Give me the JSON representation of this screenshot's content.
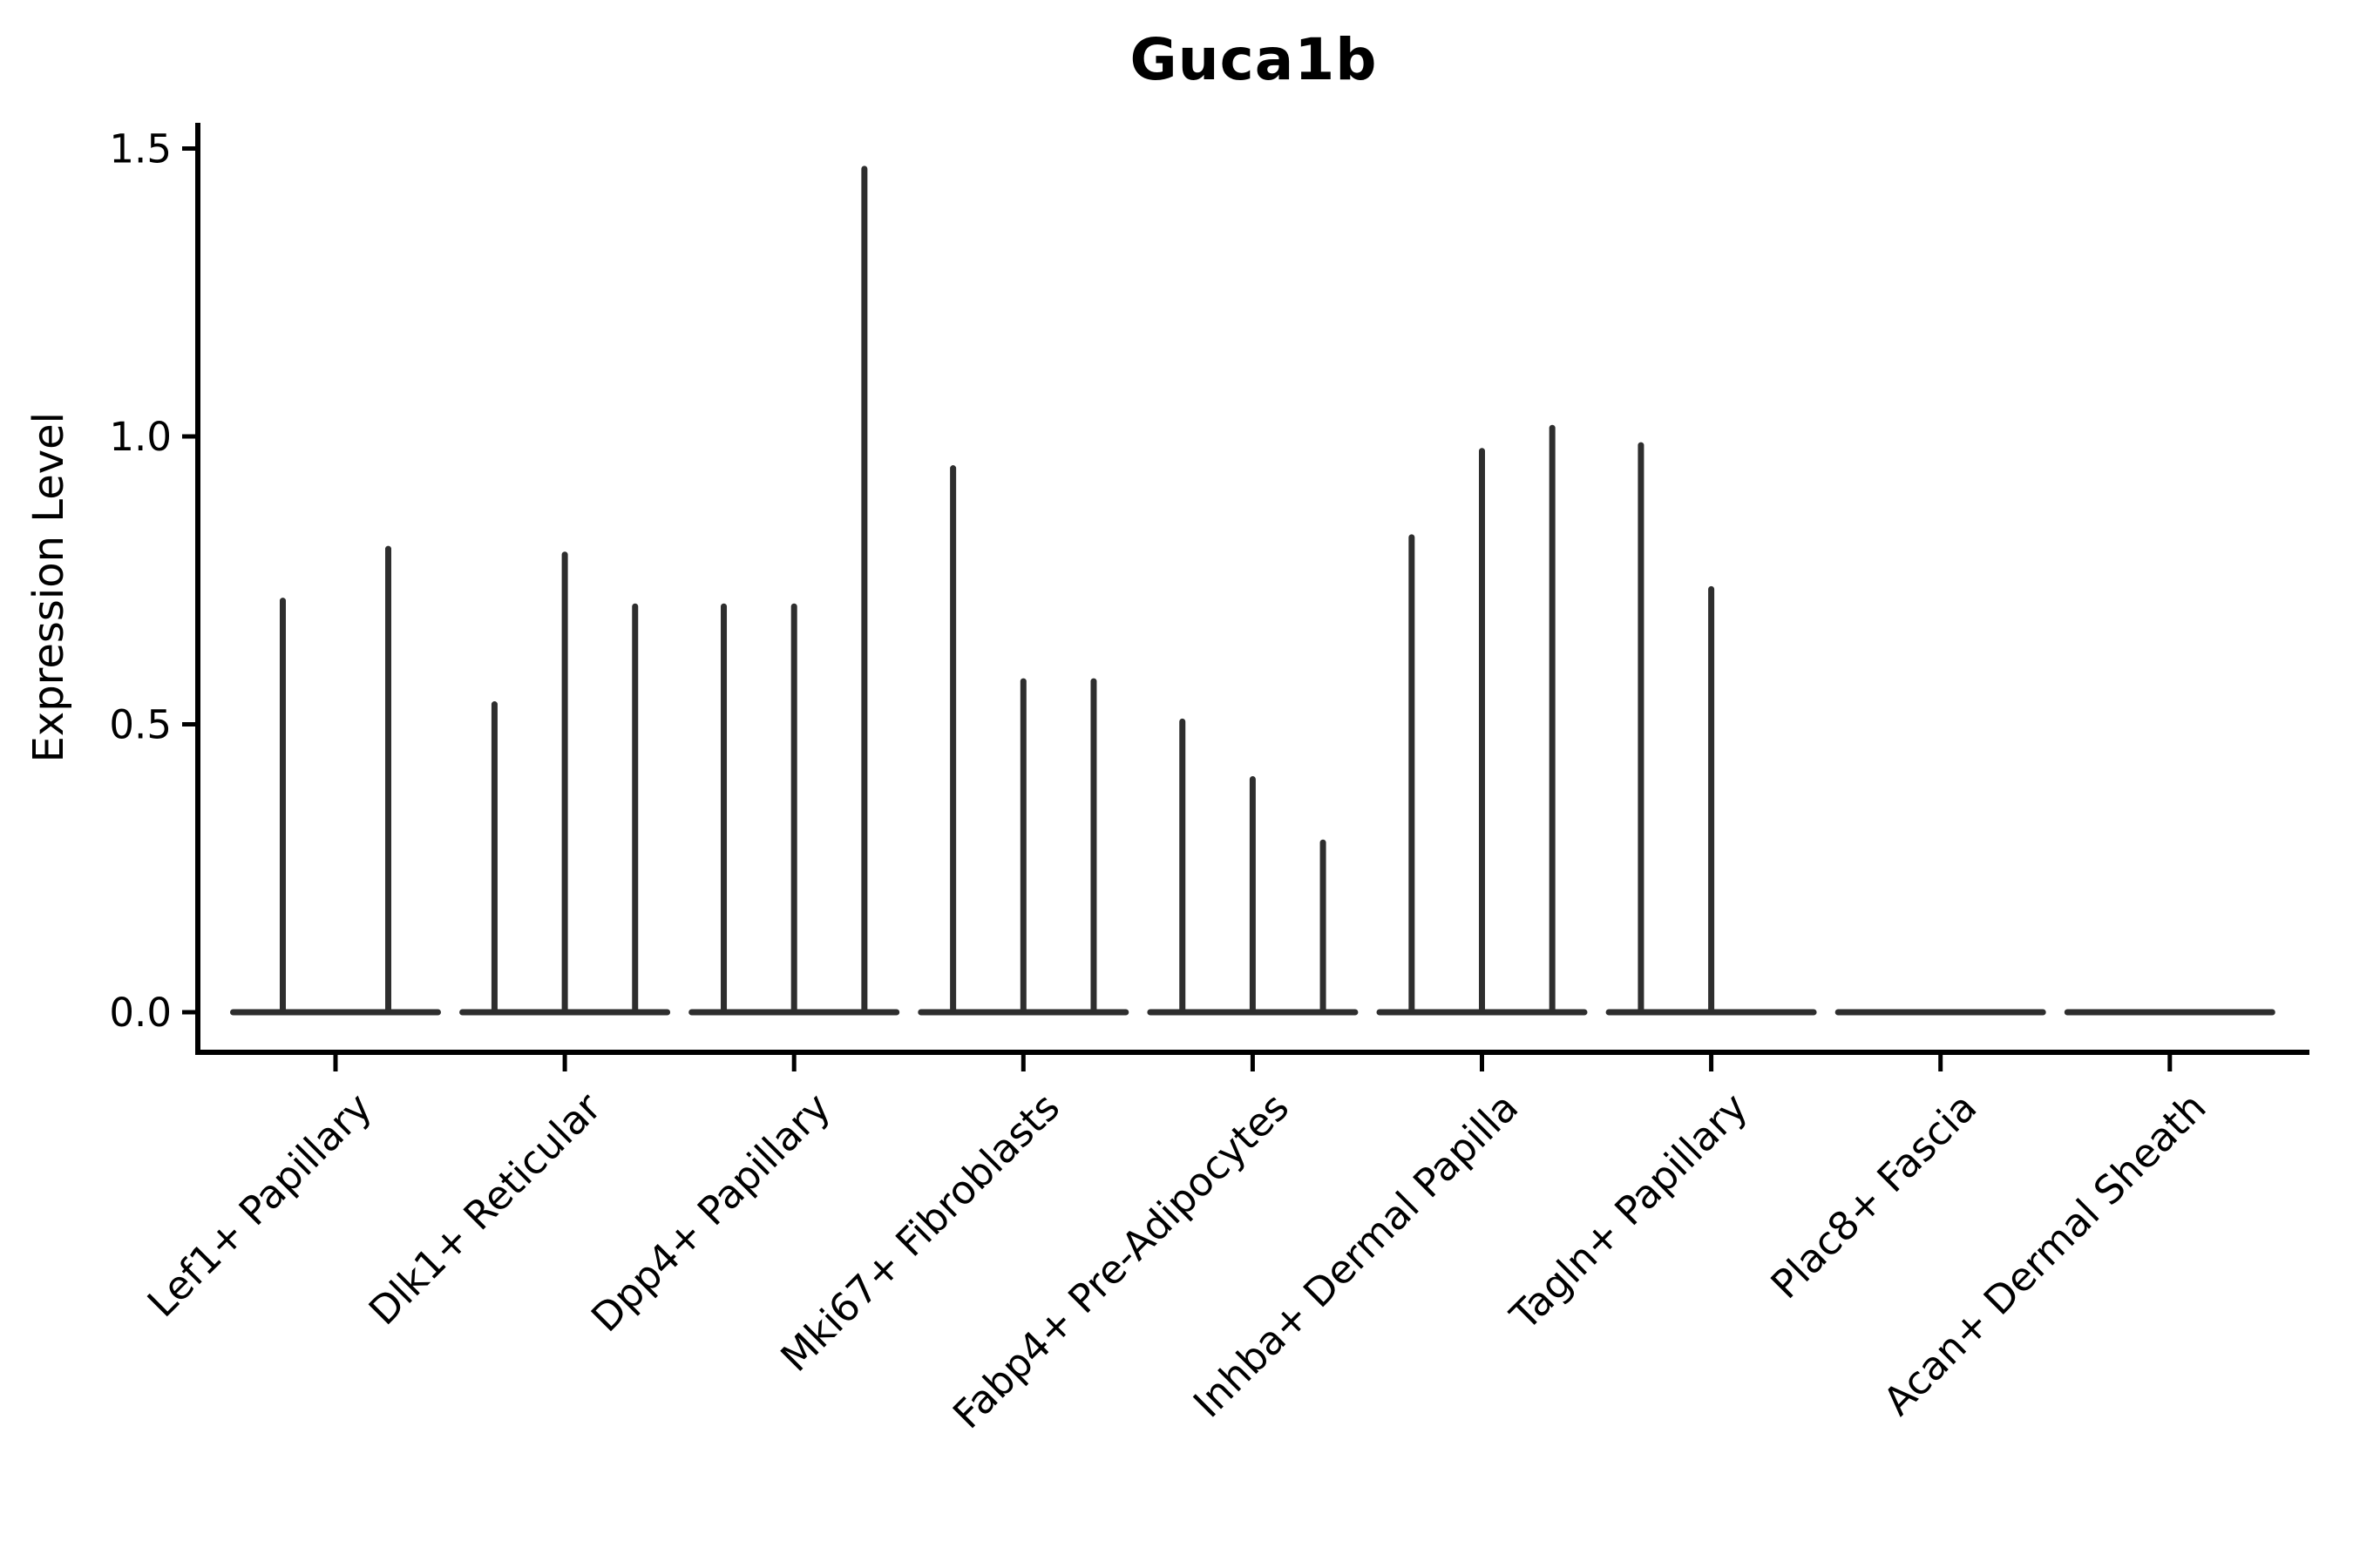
{
  "figure": {
    "title": "Guca1b",
    "y_axis_label": "Expression Level"
  },
  "chart_data": {
    "type": "violin",
    "title": "Guca1b",
    "xlabel": "",
    "ylabel": "Expression Level",
    "ylim": [
      0,
      1.545
    ],
    "yticks": [
      0.0,
      0.5,
      1.0,
      1.5
    ],
    "grid": false,
    "legend": null,
    "categories": [
      "Lef1+ Papillary",
      "Dlk1+ Reticular",
      "Dpp4+ Papillary",
      "Mki67+ Fibroblasts",
      "Fabp4+ Pre-Adipocytes",
      "Inhba+ Dermal Papilla",
      "Tagln+ Papillary",
      "Plac8+ Fascia",
      "Acan+ Dermal Sheath"
    ],
    "violins": [
      {
        "category": "Lef1+ Papillary",
        "max_values": [
          0.72,
          0.81
        ]
      },
      {
        "category": "Dlk1+ Reticular",
        "max_values": [
          0.54,
          0.8,
          0.71
        ]
      },
      {
        "category": "Dpp4+ Papillary",
        "max_values": [
          0.71,
          0.71,
          1.47
        ]
      },
      {
        "category": "Mki67+ Fibroblasts",
        "max_values": [
          0.95,
          0.58,
          0.58
        ]
      },
      {
        "category": "Fabp4+ Pre-Adipocytes",
        "max_values": [
          0.51,
          0.41,
          0.3
        ]
      },
      {
        "category": "Inhba+ Dermal Papilla",
        "max_values": [
          0.83,
          0.98,
          1.02
        ]
      },
      {
        "category": "Tagln+ Papillary",
        "max_values": [
          0.99,
          0.74,
          0.0
        ]
      },
      {
        "category": "Plac8+ Fascia",
        "max_values": [
          0.0
        ]
      },
      {
        "category": "Acan+ Dermal Sheath",
        "max_values": [
          0.0
        ]
      }
    ],
    "colors": {
      "violin": "#2e2e2e",
      "axis": "#000000",
      "text": "#000000",
      "background": "#ffffff"
    }
  }
}
